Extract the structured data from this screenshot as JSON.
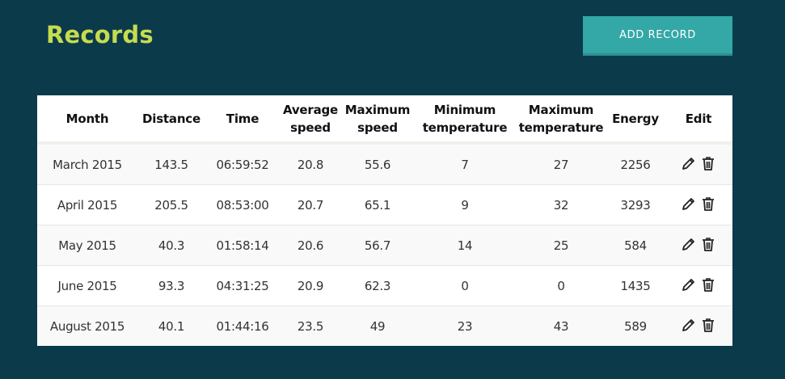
{
  "header": {
    "title": "Records",
    "add_button_label": "ADD RECORD"
  },
  "table": {
    "columns": [
      {
        "key": "month",
        "label": "Month"
      },
      {
        "key": "distance",
        "label": "Distance"
      },
      {
        "key": "time",
        "label": "Time"
      },
      {
        "key": "avg_speed",
        "label": "Average speed"
      },
      {
        "key": "max_speed",
        "label": "Maximum speed"
      },
      {
        "key": "min_temp",
        "label": "Minimum temperature"
      },
      {
        "key": "max_temp",
        "label": "Maximum temperature"
      },
      {
        "key": "energy",
        "label": "Energy"
      },
      {
        "key": "edit",
        "label": "Edit"
      }
    ],
    "rows": [
      {
        "month": "March 2015",
        "distance": "143.5",
        "time": "06:59:52",
        "avg_speed": "20.8",
        "max_speed": "55.6",
        "min_temp": "7",
        "max_temp": "27",
        "energy": "2256"
      },
      {
        "month": "April 2015",
        "distance": "205.5",
        "time": "08:53:00",
        "avg_speed": "20.7",
        "max_speed": "65.1",
        "min_temp": "9",
        "max_temp": "32",
        "energy": "3293"
      },
      {
        "month": "May 2015",
        "distance": "40.3",
        "time": "01:58:14",
        "avg_speed": "20.6",
        "max_speed": "56.7",
        "min_temp": "14",
        "max_temp": "25",
        "energy": "584"
      },
      {
        "month": "June 2015",
        "distance": "93.3",
        "time": "04:31:25",
        "avg_speed": "20.9",
        "max_speed": "62.3",
        "min_temp": "0",
        "max_temp": "0",
        "energy": "1435"
      },
      {
        "month": "August 2015",
        "distance": "40.1",
        "time": "01:44:16",
        "avg_speed": "23.5",
        "max_speed": "49",
        "min_temp": "23",
        "max_temp": "43",
        "energy": "589"
      }
    ],
    "row_icons": [
      "pencil-icon",
      "trash-icon"
    ]
  },
  "colors": {
    "background": "#0b3a4a",
    "title": "#c5dc4f",
    "button": "#33a8a6",
    "button_border": "#2b8f90"
  }
}
